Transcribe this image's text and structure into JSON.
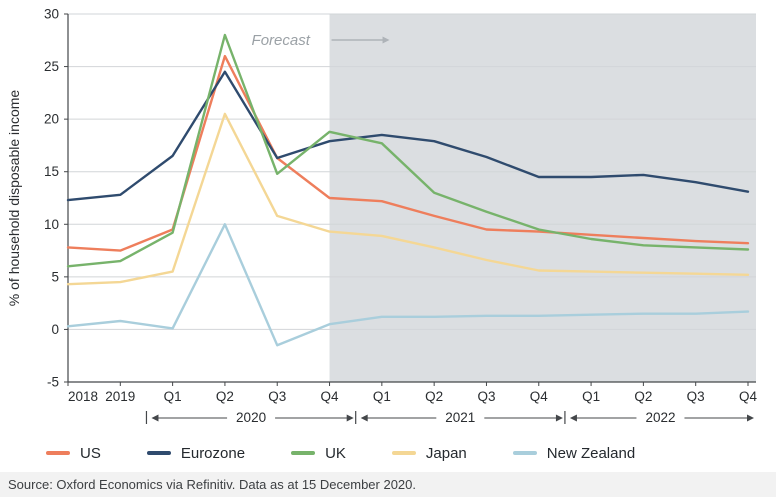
{
  "chart_data": {
    "type": "line",
    "title": "",
    "ylabel": "% of household disposable income",
    "ylim": [
      -5,
      30
    ],
    "ytick_step": 5,
    "grid": "horizontal",
    "legend_position": "bottom",
    "categories": [
      "2018",
      "2019",
      "Q1",
      "Q2",
      "Q3",
      "Q4",
      "Q1",
      "Q2",
      "Q3",
      "Q4",
      "Q1",
      "Q2",
      "Q3",
      "Q4"
    ],
    "year_groups": [
      {
        "label": "2020",
        "start_index": 2,
        "end_index": 5
      },
      {
        "label": "2021",
        "start_index": 6,
        "end_index": 9
      },
      {
        "label": "2022",
        "start_index": 10,
        "end_index": 13
      }
    ],
    "forecast": {
      "label": "Forecast",
      "start_index": 5
    },
    "series": [
      {
        "name": "US",
        "color": "#EE7E5C",
        "values": [
          7.8,
          7.5,
          9.5,
          26.0,
          16.3,
          12.5,
          12.2,
          10.8,
          9.5,
          9.3,
          9.0,
          8.7,
          8.4,
          8.2
        ]
      },
      {
        "name": "Eurozone",
        "color": "#2F4B6E",
        "values": [
          12.3,
          12.8,
          16.5,
          24.5,
          16.3,
          17.9,
          18.5,
          17.9,
          16.4,
          14.5,
          14.5,
          14.7,
          14.0,
          13.1
        ]
      },
      {
        "name": "UK",
        "color": "#77B36B",
        "values": [
          6.0,
          6.5,
          9.2,
          28.0,
          14.8,
          18.8,
          17.7,
          13.0,
          11.2,
          9.5,
          8.6,
          8.0,
          7.8,
          7.6
        ]
      },
      {
        "name": "Japan",
        "color": "#F4D795",
        "values": [
          4.3,
          4.5,
          5.5,
          20.5,
          10.8,
          9.3,
          8.9,
          7.8,
          6.6,
          5.6,
          5.5,
          5.4,
          5.3,
          5.2
        ]
      },
      {
        "name": "New Zealand",
        "color": "#A9CEDC",
        "values": [
          0.3,
          0.8,
          0.1,
          10.0,
          -1.5,
          0.5,
          1.2,
          1.2,
          1.3,
          1.3,
          1.4,
          1.5,
          1.5,
          1.7
        ]
      }
    ]
  },
  "colors": {
    "forecast_shade": "#DBDEE1",
    "grid": "#D2D5D8",
    "axis": "#44474A",
    "tick_text": "#2A2D30",
    "forecast_text": "#9BA1A6",
    "forecast_arrow": "#AEB3B8"
  },
  "source": "Source: Oxford Economics via Refinitiv. Data as at 15 December 2020."
}
